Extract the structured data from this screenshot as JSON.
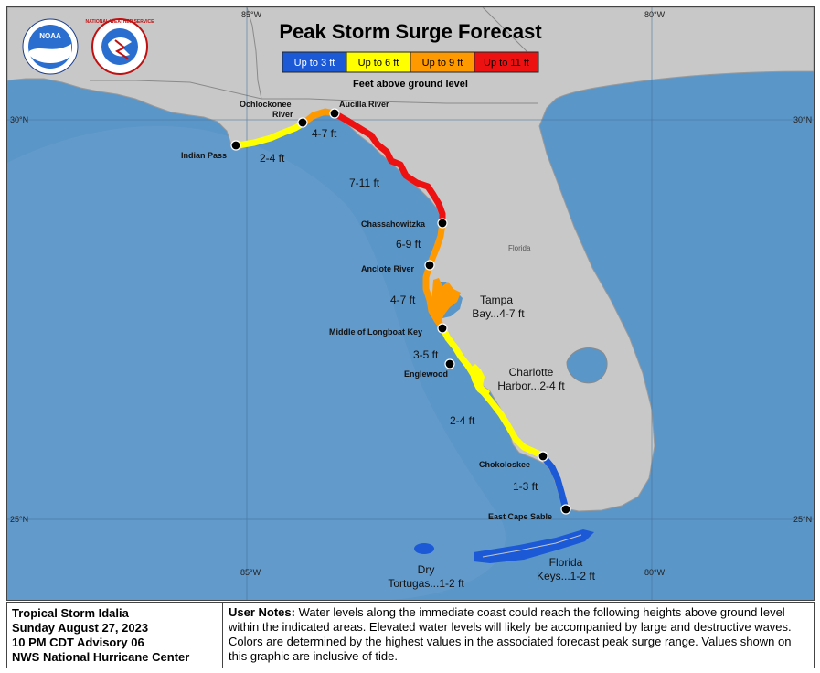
{
  "map": {
    "title": "Peak Storm Surge Forecast",
    "subtitle": "Feet above ground level",
    "legend": [
      {
        "label": "Up to 3 ft",
        "color": "#1b59d6",
        "text_color": "#ffffff"
      },
      {
        "label": "Up to 6 ft",
        "color": "#ffff00",
        "text_color": "#000000"
      },
      {
        "label": "Up to 9 ft",
        "color": "#ff9900",
        "text_color": "#000000"
      },
      {
        "label": "Up to 11 ft",
        "color": "#ee1111",
        "text_color": "#000000"
      }
    ],
    "logos": {
      "noaa": "NOAA",
      "nws": "NATIONAL WEATHER SERVICE"
    },
    "grid": {
      "lon_top": [
        "85°W",
        "80°W"
      ],
      "lon_bottom": [
        "85°W",
        "80°W"
      ],
      "lat_left": [
        "30°N",
        "25°N"
      ],
      "lat_right": [
        "30°N",
        "25°N"
      ]
    },
    "state_label": "Florida",
    "points": [
      {
        "name": "Indian Pass"
      },
      {
        "name": "Ochlockonee River"
      },
      {
        "name": "Aucilla River"
      },
      {
        "name": "Chassahowitzka"
      },
      {
        "name": "Anclote River"
      },
      {
        "name": "Middle of Longboat Key"
      },
      {
        "name": "Englewood"
      },
      {
        "name": "Chokoloskee"
      },
      {
        "name": "East Cape Sable"
      }
    ],
    "surge_ranges": [
      "2-4 ft",
      "4-7 ft",
      "7-11 ft",
      "6-9 ft",
      "4-7 ft",
      "3-5 ft",
      "2-4 ft",
      "1-3 ft"
    ],
    "areas": [
      {
        "line1": "Tampa",
        "line2": "Bay...4-7 ft"
      },
      {
        "line1": "Charlotte",
        "line2": "Harbor...2-4 ft"
      },
      {
        "line1": "Dry",
        "line2": "Tortugas...1-2 ft"
      },
      {
        "line1": "Florida",
        "line2": "Keys...1-2 ft"
      }
    ]
  },
  "footer": {
    "storm": "Tropical Storm Idalia",
    "date": "Sunday August 27, 2023",
    "advisory": "10 PM CDT Advisory 06",
    "center": "NWS National Hurricane Center",
    "notes_label": "User Notes:",
    "notes_text": " Water levels along the immediate coast could reach the following heights above ground level within the indicated areas. Elevated water levels will likely be accompanied by large and destructive waves. Colors are determined by the highest values in the associated forecast peak surge range. Values shown on this graphic are inclusive of tide."
  }
}
